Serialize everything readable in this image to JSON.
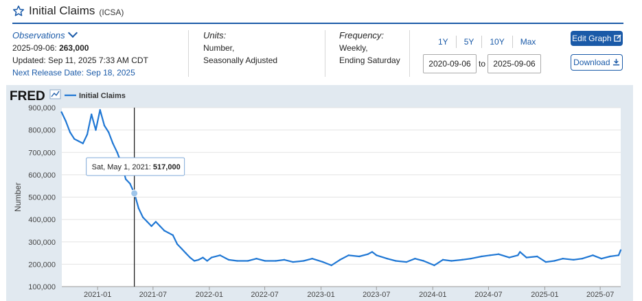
{
  "header": {
    "title": "Initial Claims",
    "series_id": "(ICSA)"
  },
  "observations": {
    "label": "Observations",
    "date": "2025-09-06:",
    "value": "263,000",
    "updated": "Updated: Sep 11, 2025 7:33 AM CDT",
    "next_release": "Next Release Date: Sep 18, 2025"
  },
  "units": {
    "label": "Units:",
    "line1": "Number,",
    "line2": "Seasonally Adjusted"
  },
  "frequency": {
    "label": "Frequency:",
    "line1": "Weekly,",
    "line2": "Ending Saturday"
  },
  "range_buttons": [
    "1Y",
    "5Y",
    "10Y",
    "Max"
  ],
  "date_range": {
    "start": "2020-09-06",
    "to": "to",
    "end": "2025-09-06"
  },
  "buttons": {
    "edit": "Edit Graph",
    "download": "Download"
  },
  "colors": {
    "accent": "#1a5aa8",
    "series": "#1f77d4",
    "plot_bg": "#e1e9f0"
  },
  "chart_data": {
    "type": "line",
    "brand": "FRED",
    "legend": "Initial Claims",
    "ylabel": "Number",
    "ylim": [
      100000,
      900000
    ],
    "yticks": [
      100000,
      200000,
      300000,
      400000,
      500000,
      600000,
      700000,
      800000,
      900000
    ],
    "ytick_labels": [
      "100,000",
      "200,000",
      "300,000",
      "400,000",
      "500,000",
      "600,000",
      "700,000",
      "800,000",
      "900,000"
    ],
    "xlim": [
      "2020-09-06",
      "2025-09-06"
    ],
    "xticks": [
      "2021-01",
      "2021-07",
      "2022-01",
      "2022-07",
      "2023-01",
      "2023-07",
      "2024-01",
      "2024-07",
      "2025-01",
      "2025-07"
    ],
    "tooltip": {
      "date": "2021-05-01",
      "label": "Sat, May 1, 2021:",
      "value_text": "517,000",
      "value": 517000
    },
    "x": [
      "2020-09-05",
      "2020-09-19",
      "2020-10-03",
      "2020-10-17",
      "2020-10-31",
      "2020-11-14",
      "2020-11-28",
      "2020-12-12",
      "2020-12-26",
      "2021-01-09",
      "2021-01-23",
      "2021-02-06",
      "2021-02-20",
      "2021-03-06",
      "2021-03-20",
      "2021-04-03",
      "2021-04-17",
      "2021-05-01",
      "2021-05-15",
      "2021-05-29",
      "2021-06-12",
      "2021-06-26",
      "2021-07-10",
      "2021-07-24",
      "2021-08-07",
      "2021-08-21",
      "2021-09-04",
      "2021-09-18",
      "2021-10-02",
      "2021-10-16",
      "2021-10-30",
      "2021-11-13",
      "2021-11-27",
      "2021-12-11",
      "2021-12-25",
      "2022-01-08",
      "2022-02-05",
      "2022-03-05",
      "2022-04-02",
      "2022-05-07",
      "2022-06-04",
      "2022-07-02",
      "2022-08-06",
      "2022-09-03",
      "2022-10-01",
      "2022-11-05",
      "2022-12-03",
      "2023-01-07",
      "2023-02-04",
      "2023-03-04",
      "2023-04-01",
      "2023-05-06",
      "2023-06-03",
      "2023-06-17",
      "2023-07-01",
      "2023-08-05",
      "2023-09-02",
      "2023-10-07",
      "2023-11-04",
      "2023-12-02",
      "2024-01-06",
      "2024-02-03",
      "2024-03-02",
      "2024-04-06",
      "2024-05-04",
      "2024-06-08",
      "2024-07-06",
      "2024-08-03",
      "2024-09-07",
      "2024-10-05",
      "2024-10-12",
      "2024-11-02",
      "2024-12-07",
      "2025-01-04",
      "2025-02-01",
      "2025-03-01",
      "2025-04-05",
      "2025-05-03",
      "2025-06-07",
      "2025-07-05",
      "2025-08-02",
      "2025-08-30",
      "2025-09-06"
    ],
    "y": [
      880000,
      840000,
      790000,
      760000,
      750000,
      740000,
      780000,
      870000,
      800000,
      890000,
      820000,
      790000,
      740000,
      700000,
      650000,
      580000,
      560000,
      517000,
      450000,
      410000,
      390000,
      370000,
      390000,
      370000,
      350000,
      340000,
      330000,
      290000,
      270000,
      250000,
      230000,
      215000,
      220000,
      230000,
      215000,
      230000,
      240000,
      220000,
      215000,
      215000,
      225000,
      215000,
      215000,
      220000,
      210000,
      215000,
      225000,
      210000,
      195000,
      220000,
      240000,
      235000,
      245000,
      255000,
      240000,
      225000,
      215000,
      210000,
      225000,
      215000,
      195000,
      220000,
      215000,
      220000,
      225000,
      235000,
      240000,
      245000,
      230000,
      240000,
      255000,
      230000,
      235000,
      210000,
      215000,
      225000,
      220000,
      225000,
      240000,
      225000,
      235000,
      240000,
      263000
    ]
  }
}
